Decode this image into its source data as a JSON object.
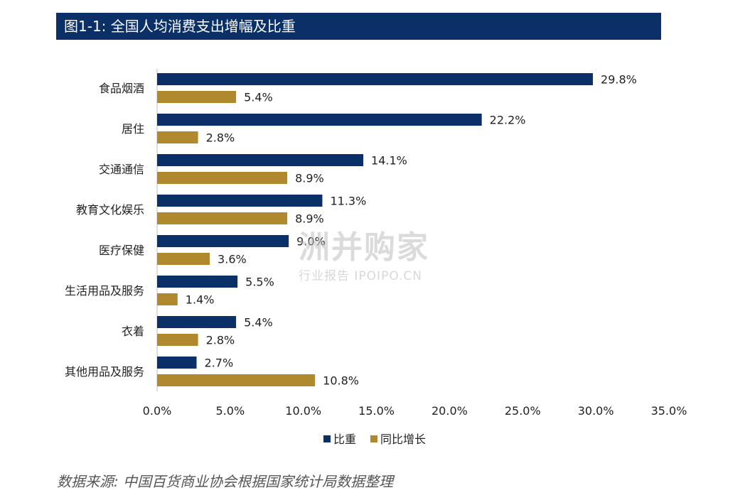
{
  "header": {
    "title": "图1-1: 全国人均消费支出增幅及比重"
  },
  "source": "数据来源: 中国百货商业协会根据国家统计局数据整理",
  "watermark": {
    "main": "洲并购家",
    "sub": "行业报告 IPOIPO.CN"
  },
  "colors": {
    "header_bg": "#0b3068",
    "series_1": "#0b3068",
    "series_2": "#b0892e"
  },
  "chart_data": {
    "type": "bar",
    "orientation": "horizontal",
    "categories": [
      "食品烟酒",
      "居住",
      "交通通信",
      "教育文化娱乐",
      "医疗保健",
      "生活用品及服务",
      "衣着",
      "其他用品及服务"
    ],
    "series": [
      {
        "name": "比重",
        "values": [
          29.8,
          22.2,
          14.1,
          11.3,
          9.0,
          5.5,
          5.4,
          2.7
        ],
        "labels": [
          "29.8%",
          "22.2%",
          "14.1%",
          "11.3%",
          "9.0%",
          "5.5%",
          "5.4%",
          "2.7%"
        ]
      },
      {
        "name": "同比增长",
        "values": [
          5.4,
          2.8,
          8.9,
          8.9,
          3.6,
          1.4,
          2.8,
          10.8
        ],
        "labels": [
          "5.4%",
          "2.8%",
          "8.9%",
          "8.9%",
          "3.6%",
          "1.4%",
          "2.8%",
          "10.8%"
        ]
      }
    ],
    "xlim": [
      0,
      35
    ],
    "xticks": [
      "0.0%",
      "5.0%",
      "10.0%",
      "15.0%",
      "20.0%",
      "25.0%",
      "30.0%",
      "35.0%"
    ],
    "grid": false,
    "legend": "bottom-center"
  }
}
